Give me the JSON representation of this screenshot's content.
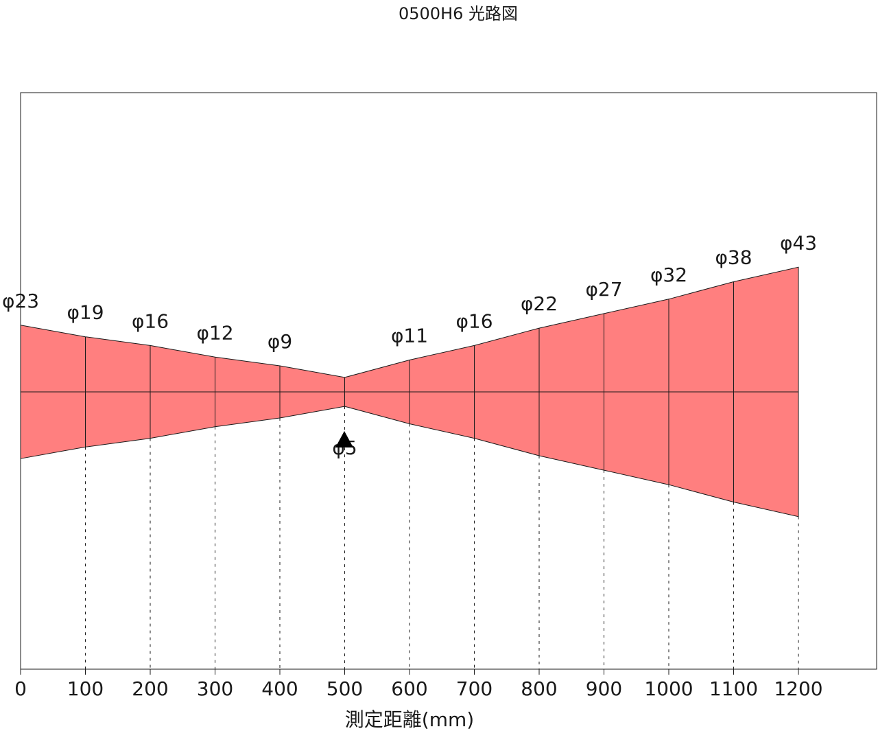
{
  "chart_data": {
    "type": "area",
    "title": "0500H6 光路図",
    "xlabel": "測定距離(mm)",
    "ylabel": "",
    "xlim": [
      0,
      1200
    ],
    "x_ticks": [
      "0",
      "100",
      "200",
      "300",
      "400",
      "500",
      "600",
      "700",
      "800",
      "900",
      "1000",
      "1100",
      "1200"
    ],
    "distances": [
      0,
      100,
      200,
      300,
      400,
      500,
      600,
      700,
      800,
      900,
      1000,
      1100,
      1200
    ],
    "diameters": [
      23,
      19,
      16,
      12,
      9,
      5,
      11,
      16,
      22,
      27,
      32,
      38,
      43
    ],
    "diameter_labels": [
      "φ23",
      "φ19",
      "φ16",
      "φ12",
      "φ9",
      "φ5",
      "φ11",
      "φ16",
      "φ22",
      "φ27",
      "φ32",
      "φ38",
      "φ43"
    ],
    "focus_distance": 500,
    "beam_color": "#ff7f7f",
    "line_color": "#1a1a1a"
  }
}
